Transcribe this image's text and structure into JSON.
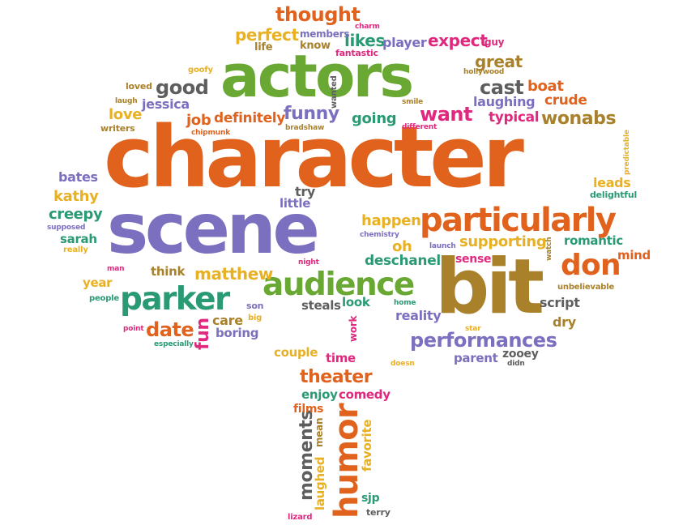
{
  "colors": {
    "orange": "#e0621c",
    "green": "#69a832",
    "purple": "#7b6fbf",
    "gold": "#e8b023",
    "olive": "#a8812a",
    "teal": "#2a9a74",
    "gray": "#5e5e5e",
    "pink": "#e0297e"
  },
  "words": [
    {
      "text": "character",
      "color": "orange"
    },
    {
      "text": "actors",
      "color": "green"
    },
    {
      "text": "scene",
      "color": "purple"
    },
    {
      "text": "bit",
      "color": "olive"
    },
    {
      "text": "particularly",
      "color": "orange"
    },
    {
      "text": "audience",
      "color": "green"
    },
    {
      "text": "parker",
      "color": "teal"
    },
    {
      "text": "humor",
      "color": "orange"
    },
    {
      "text": "performances",
      "color": "purple"
    },
    {
      "text": "don",
      "color": "orange"
    },
    {
      "text": "thought",
      "color": "orange"
    },
    {
      "text": "theater",
      "color": "orange"
    },
    {
      "text": "moments",
      "color": "gray"
    },
    {
      "text": "wonabs",
      "color": "olive"
    },
    {
      "text": "funny",
      "color": "purple"
    },
    {
      "text": "good",
      "color": "gray"
    },
    {
      "text": "cast",
      "color": "gray"
    },
    {
      "text": "want",
      "color": "pink"
    },
    {
      "text": "date",
      "color": "orange"
    },
    {
      "text": "great",
      "color": "olive"
    },
    {
      "text": "matthew",
      "color": "gold"
    },
    {
      "text": "supporting",
      "color": "gold"
    },
    {
      "text": "perfect",
      "color": "gold"
    },
    {
      "text": "expect",
      "color": "pink"
    },
    {
      "text": "likes",
      "color": "teal"
    },
    {
      "text": "player",
      "color": "purple"
    },
    {
      "text": "definitely",
      "color": "orange"
    },
    {
      "text": "going",
      "color": "teal"
    },
    {
      "text": "happen",
      "color": "gold"
    },
    {
      "text": "deschanel",
      "color": "teal"
    },
    {
      "text": "creepy",
      "color": "teal"
    },
    {
      "text": "kathy",
      "color": "gold"
    },
    {
      "text": "love",
      "color": "gold"
    },
    {
      "text": "boat",
      "color": "orange"
    },
    {
      "text": "crude",
      "color": "orange"
    },
    {
      "text": "laughing",
      "color": "purple"
    },
    {
      "text": "typical",
      "color": "pink"
    },
    {
      "text": "leads",
      "color": "gold"
    },
    {
      "text": "job",
      "color": "orange"
    },
    {
      "text": "jessica",
      "color": "purple"
    },
    {
      "text": "bates",
      "color": "purple"
    },
    {
      "text": "try",
      "color": "gray"
    },
    {
      "text": "little",
      "color": "purple"
    },
    {
      "text": "oh",
      "color": "gold"
    },
    {
      "text": "sarah",
      "color": "teal"
    },
    {
      "text": "romantic",
      "color": "teal"
    },
    {
      "text": "mind",
      "color": "orange"
    },
    {
      "text": "comedy",
      "color": "pink"
    },
    {
      "text": "enjoy",
      "color": "teal"
    },
    {
      "text": "reality",
      "color": "purple"
    },
    {
      "text": "script",
      "color": "gray"
    },
    {
      "text": "dry",
      "color": "olive"
    },
    {
      "text": "couple",
      "color": "gold"
    },
    {
      "text": "time",
      "color": "pink"
    },
    {
      "text": "steals",
      "color": "gray"
    },
    {
      "text": "look",
      "color": "teal"
    },
    {
      "text": "think",
      "color": "olive"
    },
    {
      "text": "care",
      "color": "olive"
    },
    {
      "text": "boring",
      "color": "purple"
    },
    {
      "text": "fun",
      "color": "pink"
    },
    {
      "text": "year",
      "color": "gold"
    },
    {
      "text": "films",
      "color": "orange"
    },
    {
      "text": "parent",
      "color": "purple"
    },
    {
      "text": "zooey",
      "color": "gray"
    },
    {
      "text": "sense",
      "color": "pink"
    },
    {
      "text": "favorite",
      "color": "gold"
    },
    {
      "text": "laughed",
      "color": "gold"
    },
    {
      "text": "mean",
      "color": "olive"
    },
    {
      "text": "sjp",
      "color": "teal"
    },
    {
      "text": "terry",
      "color": "gray"
    },
    {
      "text": "lizard",
      "color": "pink"
    },
    {
      "text": "members",
      "color": "purple"
    },
    {
      "text": "know",
      "color": "olive"
    },
    {
      "text": "life",
      "color": "olive"
    },
    {
      "text": "fantastic",
      "color": "pink"
    },
    {
      "text": "charm",
      "color": "pink"
    },
    {
      "text": "guy",
      "color": "pink"
    },
    {
      "text": "hollywood",
      "color": "olive"
    },
    {
      "text": "goofy",
      "color": "gold"
    },
    {
      "text": "loved",
      "color": "olive"
    },
    {
      "text": "laugh",
      "color": "olive"
    },
    {
      "text": "writers",
      "color": "olive"
    },
    {
      "text": "chipmunk",
      "color": "orange"
    },
    {
      "text": "wanted",
      "color": "gray"
    },
    {
      "text": "smile",
      "color": "olive"
    },
    {
      "text": "different",
      "color": "pink"
    },
    {
      "text": "bradshaw",
      "color": "olive"
    },
    {
      "text": "predictable",
      "color": "gold"
    },
    {
      "text": "delightful",
      "color": "teal"
    },
    {
      "text": "supposed",
      "color": "purple"
    },
    {
      "text": "really",
      "color": "gold"
    },
    {
      "text": "man",
      "color": "pink"
    },
    {
      "text": "chemistry",
      "color": "purple"
    },
    {
      "text": "launch",
      "color": "purple"
    },
    {
      "text": "watch",
      "color": "olive"
    },
    {
      "text": "night",
      "color": "pink"
    },
    {
      "text": "people",
      "color": "teal"
    },
    {
      "text": "son",
      "color": "purple"
    },
    {
      "text": "big",
      "color": "gold"
    },
    {
      "text": "point",
      "color": "pink"
    },
    {
      "text": "especially",
      "color": "teal"
    },
    {
      "text": "home",
      "color": "teal"
    },
    {
      "text": "work",
      "color": "pink"
    },
    {
      "text": "unbelievable",
      "color": "olive"
    },
    {
      "text": "star",
      "color": "gold"
    },
    {
      "text": "doesn",
      "color": "gold"
    },
    {
      "text": "didn",
      "color": "gray"
    }
  ]
}
